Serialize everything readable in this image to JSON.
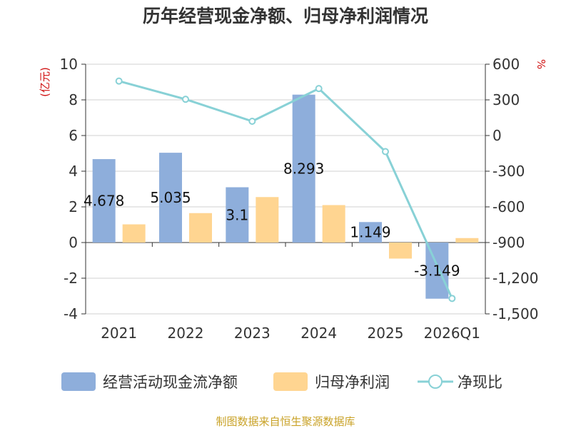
{
  "chart_data": {
    "type": "bar",
    "title": "历年经营现金净额、归母净利润情况",
    "categories": [
      "2021",
      "2022",
      "2023",
      "2024",
      "2025",
      "2026Q1"
    ],
    "series": [
      {
        "name": "经营活动现金流净额",
        "type": "bar",
        "axis": "left",
        "color": "#8eaedb",
        "values": [
          4.678,
          5.035,
          3.1,
          8.293,
          1.149,
          -3.149
        ],
        "labels": [
          "4.678",
          "5.035",
          "3.1",
          "8.293",
          "1.149",
          "-3.149"
        ]
      },
      {
        "name": "归母净利润",
        "type": "bar",
        "axis": "left",
        "color": "#ffd591",
        "values": [
          1.02,
          1.65,
          2.55,
          2.1,
          -0.9,
          0.25
        ]
      },
      {
        "name": "净现比",
        "type": "line",
        "axis": "right",
        "color": "#88d1d6",
        "values": [
          458,
          305,
          120,
          395,
          -135,
          -1370
        ]
      }
    ],
    "y_left": {
      "unit": "(亿元)",
      "min": -4,
      "max": 10,
      "ticks": [
        "-4",
        "-2",
        "0",
        "2",
        "4",
        "6",
        "8",
        "10"
      ]
    },
    "y_right": {
      "unit": "%",
      "min": -1500,
      "max": 600,
      "ticks": [
        "-1,500",
        "-1,200",
        "-900",
        "-600",
        "-300",
        "0",
        "300",
        "600"
      ]
    },
    "legend": "bottom",
    "source": "制图数据来自恒生聚源数据库"
  }
}
